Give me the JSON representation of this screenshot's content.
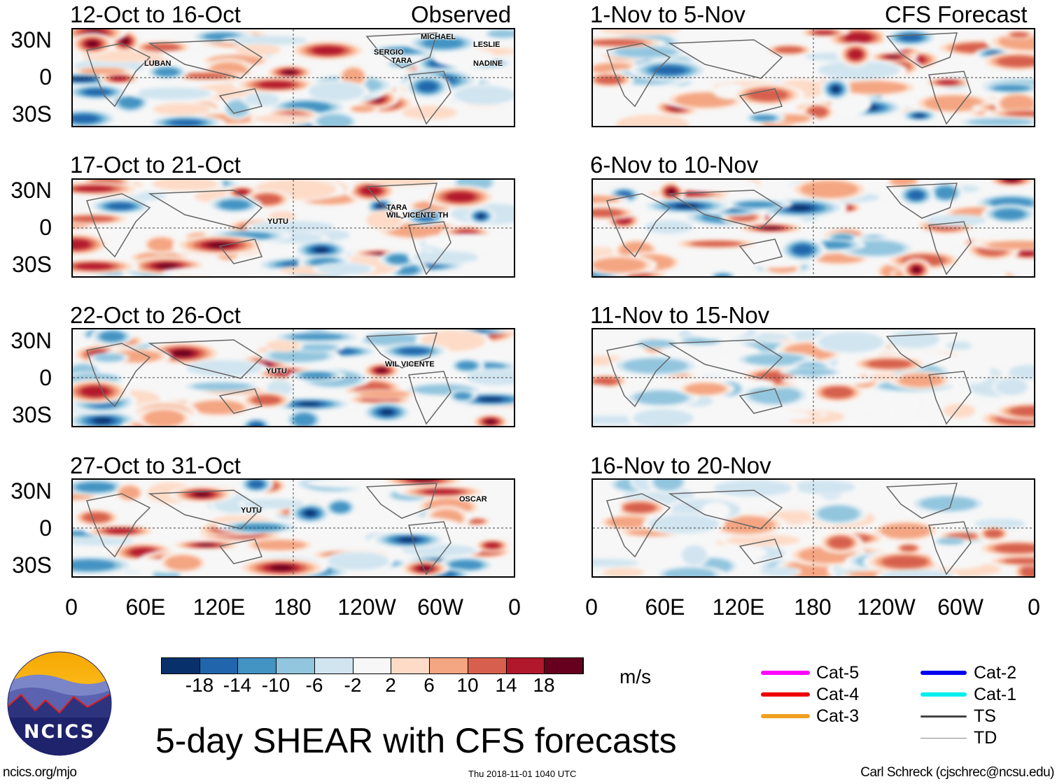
{
  "panels": {
    "left": [
      {
        "title": "12-Oct to 16-Oct",
        "tag": "Observed",
        "storms": [
          "MICHAEL",
          "LESLIE",
          "SERGIO",
          "TARA",
          "NADINE",
          "LUBAN"
        ]
      },
      {
        "title": "17-Oct to 21-Oct",
        "storms": [
          "YUTU",
          "TARA",
          "WIL VICENTE TH"
        ]
      },
      {
        "title": "22-Oct to 26-Oct",
        "storms": [
          "YUTU",
          "WIL VICENTE"
        ]
      },
      {
        "title": "27-Oct to 31-Oct",
        "storms": [
          "YUTU",
          "OSCAR"
        ]
      }
    ],
    "right": [
      {
        "title": "1-Nov to 5-Nov",
        "tag": "CFS Forecast"
      },
      {
        "title": "6-Nov to 10-Nov"
      },
      {
        "title": "11-Nov to 15-Nov"
      },
      {
        "title": "16-Nov to 20-Nov"
      }
    ]
  },
  "lat_labels": [
    "30N",
    "0",
    "30S"
  ],
  "lon_labels": [
    "0",
    "60E",
    "120E",
    "180",
    "120W",
    "60W",
    "0"
  ],
  "colorbar": {
    "colors": [
      "#08306b",
      "#2166ac",
      "#4393c3",
      "#92c5de",
      "#d1e5f0",
      "#f7f7f7",
      "#fddbc7",
      "#f4a582",
      "#d6604d",
      "#b2182b",
      "#67001f"
    ],
    "labels": [
      "-18",
      "-14",
      "-10",
      "-6",
      "-2",
      "2",
      "6",
      "10",
      "14",
      "18"
    ],
    "units": "m/s"
  },
  "legend": [
    {
      "label": "Cat-5",
      "color": "#ff00ff"
    },
    {
      "label": "Cat-4",
      "color": "#ee0000"
    },
    {
      "label": "Cat-3",
      "color": "#f0a020"
    },
    {
      "label": "Cat-2",
      "color": "#0000ee"
    },
    {
      "label": "Cat-1",
      "color": "#00eeee"
    },
    {
      "label": "TS",
      "color": "#444444"
    },
    {
      "label": "TD",
      "color": "#888888"
    }
  ],
  "logo_text": "NCICS",
  "main_title": "5-day SHEAR with CFS forecasts",
  "footer": {
    "left": "ncics.org/mjo",
    "center": "Thu 2018-11-01 1040 UTC",
    "right": "Carl Schreck (cjschrec@ncsu.edu)"
  }
}
